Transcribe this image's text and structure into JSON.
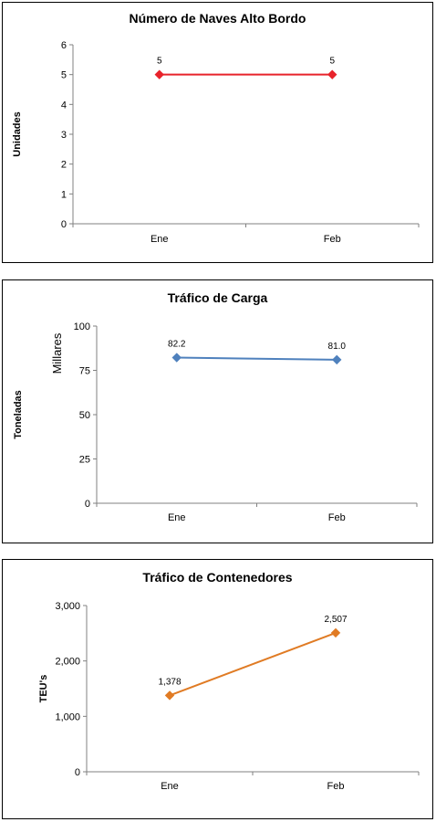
{
  "chart_data": [
    {
      "type": "line",
      "title": "Número de Naves Alto Bordo",
      "ylabel": "Unidades",
      "unit_label": "",
      "categories": [
        "Ene",
        "Feb"
      ],
      "series": [
        {
          "values": [
            5,
            5
          ],
          "color": "#e8232b",
          "labels": [
            "5",
            "5"
          ]
        }
      ],
      "ylim": [
        0,
        6
      ],
      "yticks": [
        0,
        1,
        2,
        3,
        4,
        5,
        6
      ],
      "ytick_labels": [
        "0",
        "1",
        "2",
        "3",
        "4",
        "5",
        "6"
      ],
      "grid": false,
      "legend": "none"
    },
    {
      "type": "line",
      "title": "Tráfico de Carga",
      "ylabel": "Toneladas",
      "unit_label": "Millares",
      "categories": [
        "Ene",
        "Feb"
      ],
      "series": [
        {
          "values": [
            82.2,
            81.0
          ],
          "color": "#4f81bd",
          "labels": [
            "82.2",
            "81.0"
          ]
        }
      ],
      "ylim": [
        0,
        100
      ],
      "yticks": [
        0,
        25,
        50,
        75,
        100
      ],
      "ytick_labels": [
        "0",
        "25",
        "50",
        "75",
        "100"
      ],
      "grid": false,
      "legend": "none"
    },
    {
      "type": "line",
      "title": "Tráfico de Contenedores",
      "ylabel": "TEU's",
      "unit_label": "",
      "categories": [
        "Ene",
        "Feb"
      ],
      "series": [
        {
          "values": [
            1378,
            2507
          ],
          "color": "#e07b24",
          "labels": [
            "1,378",
            "2,507"
          ]
        }
      ],
      "ylim": [
        0,
        3000
      ],
      "yticks": [
        0,
        1000,
        2000,
        3000
      ],
      "ytick_labels": [
        "0",
        "1,000",
        "2,000",
        "3,000"
      ],
      "grid": false,
      "legend": "none"
    }
  ]
}
